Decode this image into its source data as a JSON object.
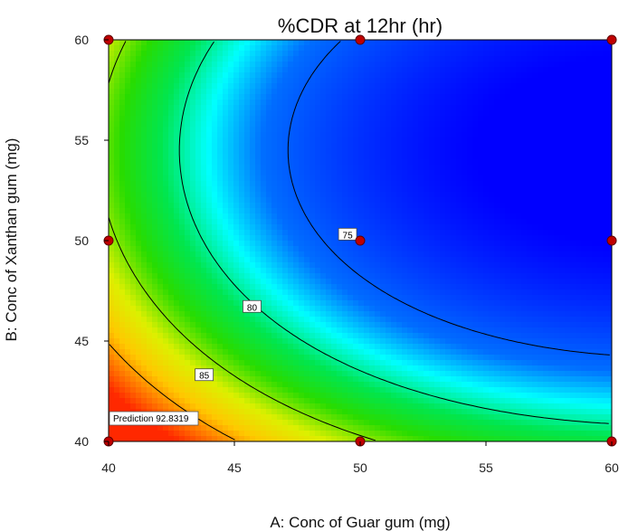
{
  "chart_data": {
    "type": "contour",
    "title": "%CDR at 12hr (hr)",
    "xlabel": "A: Conc of Guar gum (mg)",
    "ylabel": "B: Conc of Xanthan gum (mg)",
    "xlim": [
      40,
      60
    ],
    "ylim": [
      40,
      60
    ],
    "x_ticks": [
      "40",
      "45",
      "50",
      "55",
      "60"
    ],
    "y_ticks": [
      "40",
      "45",
      "50",
      "55",
      "60"
    ],
    "contour_levels": [
      {
        "label": "75",
        "value": 75,
        "label_x": 49.5,
        "label_y": 50.3
      },
      {
        "label": "80",
        "value": 80,
        "label_x": 45.7,
        "label_y": 46.7
      },
      {
        "label": "85",
        "value": 85,
        "label_x": 43.8,
        "label_y": 43.3
      }
    ],
    "design_points": [
      {
        "x": 40,
        "y": 60
      },
      {
        "x": 50,
        "y": 60
      },
      {
        "x": 60,
        "y": 60
      },
      {
        "x": 40,
        "y": 50
      },
      {
        "x": 50,
        "y": 50
      },
      {
        "x": 60,
        "y": 50
      },
      {
        "x": 40,
        "y": 40
      },
      {
        "x": 50,
        "y": 40
      },
      {
        "x": 60,
        "y": 40
      }
    ],
    "prediction": {
      "label": "Prediction",
      "value": "92.8319",
      "x": 40,
      "y": 40
    },
    "colorscale": [
      "#0000ff",
      "#00ffff",
      "#00ff00",
      "#ffff00",
      "#ff0000"
    ]
  }
}
